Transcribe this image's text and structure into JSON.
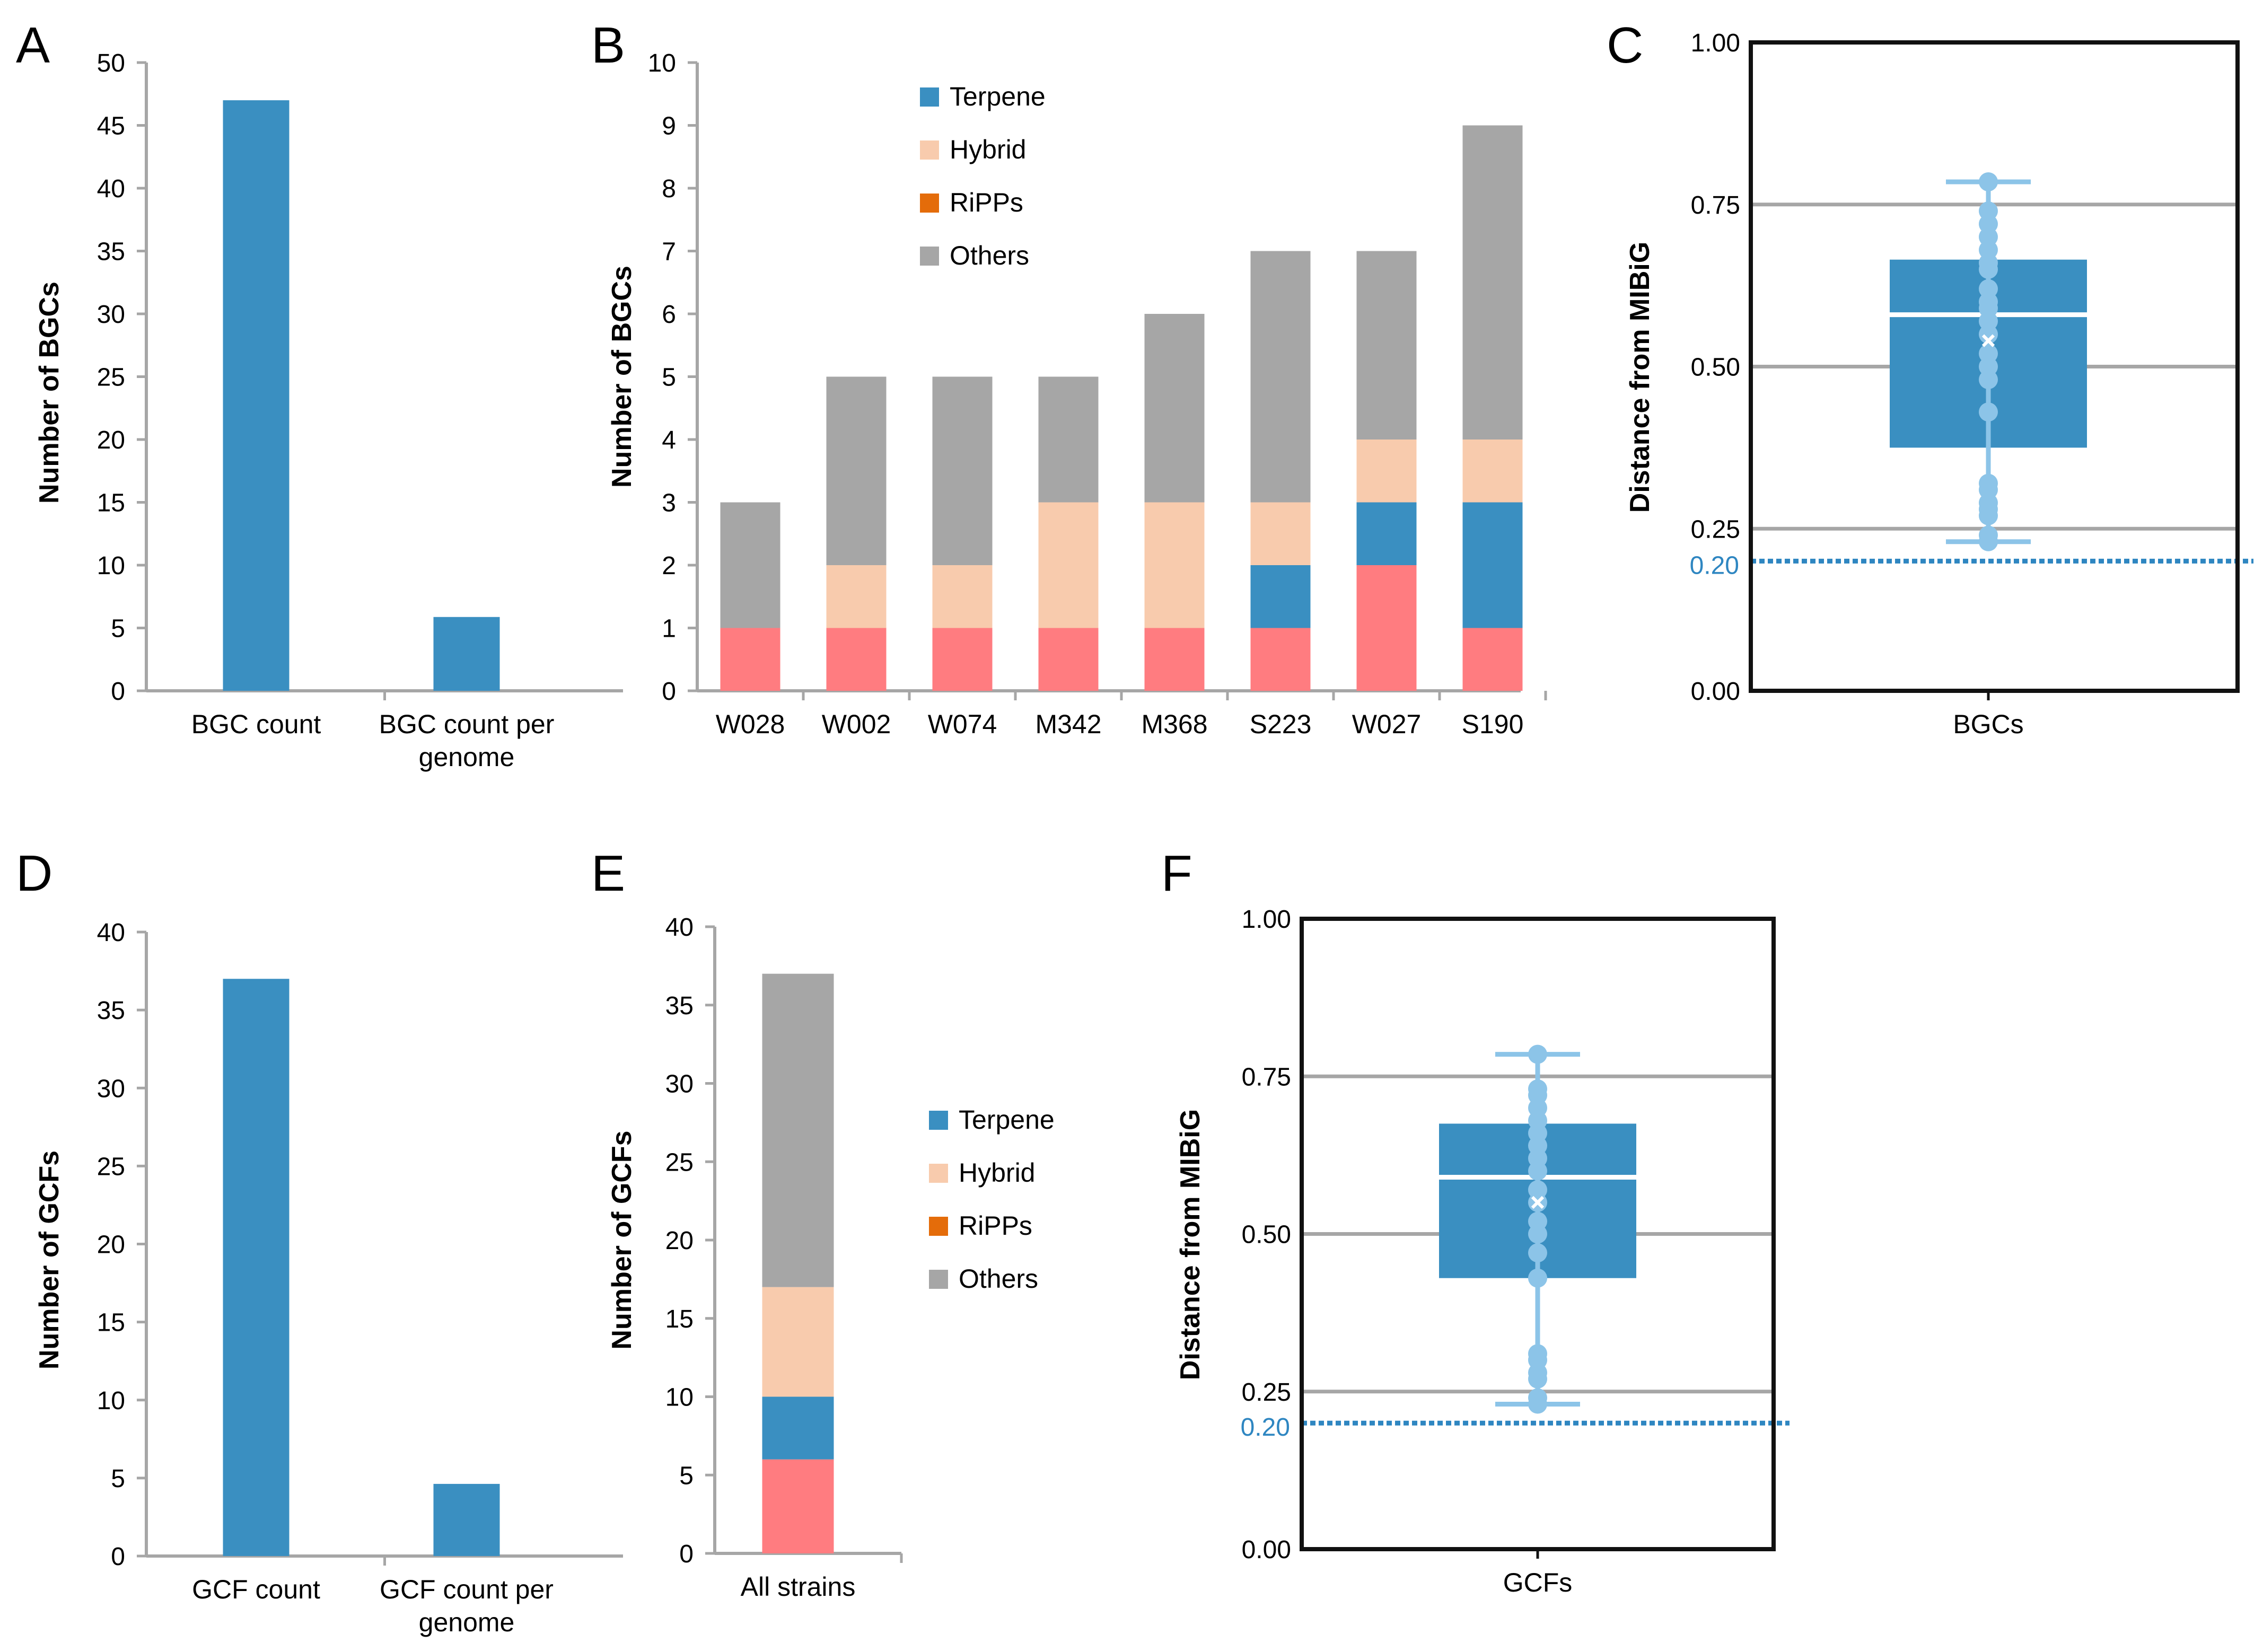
{
  "colors": {
    "blue": "#3A8FC1",
    "light_blue": "#8CC4E8",
    "peach": "#F8CBAD",
    "orange": "#E46C0A",
    "gray": "#A6A6A6",
    "pink": "#FF7C80",
    "axis": "#A6A6A6",
    "gridline": "#A6A6A6",
    "ref_line": "#2E86C1"
  },
  "chart_data": [
    {
      "id": "A",
      "panel_label": "A",
      "type": "bar",
      "categories": [
        "BGC count",
        "BGC count per genome"
      ],
      "category_lines": [
        [
          "BGC count"
        ],
        [
          "BGC count per",
          "genome"
        ]
      ],
      "values": [
        47,
        5.875
      ],
      "ylabel": "Number of BGCs",
      "ylim": [
        0,
        50
      ],
      "yticks": [
        0,
        5,
        10,
        15,
        20,
        25,
        30,
        35,
        40,
        45,
        50
      ],
      "color": "#3A8FC1"
    },
    {
      "id": "B",
      "panel_label": "B",
      "type": "bar",
      "stacked": true,
      "categories": [
        "W028",
        "W002",
        "W074",
        "M342",
        "M368",
        "S223",
        "W027",
        "S190"
      ],
      "series": [
        {
          "name": "",
          "color": "#FF7C80",
          "values": [
            1,
            1,
            1,
            1,
            1,
            1,
            2,
            1
          ]
        },
        {
          "name": "Terpene",
          "color": "#3A8FC1",
          "values": [
            0,
            0,
            0,
            0,
            0,
            1,
            1,
            2
          ]
        },
        {
          "name": "Hybrid",
          "color": "#F8CBAD",
          "values": [
            0,
            1,
            1,
            2,
            2,
            1,
            1,
            1
          ]
        },
        {
          "name": "RiPPs",
          "color": "#E46C0A",
          "values": [
            0,
            0,
            0,
            0,
            0,
            0,
            0,
            0
          ]
        },
        {
          "name": "Others",
          "color": "#A6A6A6",
          "values": [
            2,
            3,
            3,
            2,
            3,
            4,
            3,
            5
          ]
        }
      ],
      "legend": [
        {
          "label": "Terpene",
          "color": "#3A8FC1"
        },
        {
          "label": "Hybrid",
          "color": "#F8CBAD"
        },
        {
          "label": "RiPPs",
          "color": "#E46C0A"
        },
        {
          "label": "Others",
          "color": "#A6A6A6"
        }
      ],
      "ylabel": "Number of BGCs",
      "ylim": [
        0,
        10
      ],
      "yticks": [
        0,
        1,
        2,
        3,
        4,
        5,
        6,
        7,
        8,
        9,
        10
      ]
    },
    {
      "id": "C",
      "panel_label": "C",
      "type": "box",
      "category": "BGCs",
      "ylabel": "Distance from MIBiG",
      "ylim": [
        0,
        1
      ],
      "yticks": [
        "0.00",
        "0.25",
        "0.50",
        "0.75",
        "1.00"
      ],
      "box": {
        "min": 0.23,
        "q1": 0.375,
        "median": 0.58,
        "mean": 0.54,
        "q3": 0.665,
        "max": 0.785
      },
      "points": [
        0.23,
        0.24,
        0.27,
        0.28,
        0.29,
        0.31,
        0.32,
        0.43,
        0.48,
        0.5,
        0.52,
        0.55,
        0.57,
        0.59,
        0.6,
        0.62,
        0.65,
        0.66,
        0.68,
        0.7,
        0.72,
        0.74,
        0.785
      ],
      "reference_line": {
        "value": 0.2,
        "label": "0.20"
      }
    },
    {
      "id": "D",
      "panel_label": "D",
      "type": "bar",
      "categories": [
        "GCF count",
        "GCF count per genome"
      ],
      "category_lines": [
        [
          "GCF count"
        ],
        [
          "GCF count per",
          "genome"
        ]
      ],
      "values": [
        37,
        4.625
      ],
      "ylabel": "Number of GCFs",
      "ylim": [
        0,
        40
      ],
      "yticks": [
        0,
        5,
        10,
        15,
        20,
        25,
        30,
        35,
        40
      ],
      "color": "#3A8FC1"
    },
    {
      "id": "E",
      "panel_label": "E",
      "type": "bar",
      "stacked": true,
      "categories": [
        "All strains"
      ],
      "series": [
        {
          "name": "",
          "color": "#FF7C80",
          "values": [
            6
          ]
        },
        {
          "name": "Terpene",
          "color": "#3A8FC1",
          "values": [
            4
          ]
        },
        {
          "name": "Hybrid",
          "color": "#F8CBAD",
          "values": [
            7
          ]
        },
        {
          "name": "RiPPs",
          "color": "#E46C0A",
          "values": [
            0
          ]
        },
        {
          "name": "Others",
          "color": "#A6A6A6",
          "values": [
            20
          ]
        }
      ],
      "legend": [
        {
          "label": "Terpene",
          "color": "#3A8FC1"
        },
        {
          "label": "Hybrid",
          "color": "#F8CBAD"
        },
        {
          "label": "RiPPs",
          "color": "#E46C0A"
        },
        {
          "label": "Others",
          "color": "#A6A6A6"
        }
      ],
      "ylabel": "Number of GCFs",
      "ylim": [
        0,
        40
      ],
      "yticks": [
        0,
        5,
        10,
        15,
        20,
        25,
        30,
        35,
        40
      ]
    },
    {
      "id": "F",
      "panel_label": "F",
      "type": "box",
      "category": "GCFs",
      "ylabel": "Distance from MIBiG",
      "ylim": [
        0,
        1
      ],
      "yticks": [
        "0.00",
        "0.25",
        "0.50",
        "0.75",
        "1.00"
      ],
      "box": {
        "min": 0.23,
        "q1": 0.43,
        "median": 0.59,
        "mean": 0.55,
        "q3": 0.675,
        "max": 0.785
      },
      "points": [
        0.23,
        0.24,
        0.27,
        0.28,
        0.3,
        0.31,
        0.43,
        0.47,
        0.5,
        0.52,
        0.55,
        0.57,
        0.6,
        0.62,
        0.64,
        0.66,
        0.68,
        0.7,
        0.72,
        0.73,
        0.785
      ],
      "reference_line": {
        "value": 0.2,
        "label": "0.20"
      }
    }
  ]
}
